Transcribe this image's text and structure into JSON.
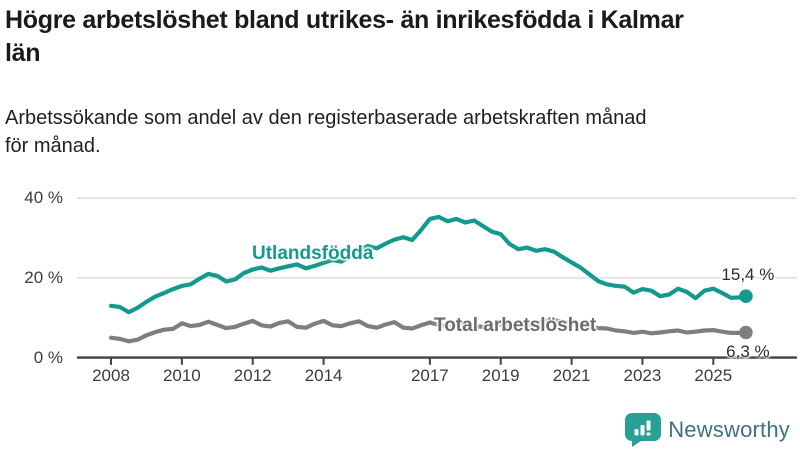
{
  "header": {
    "title": "Högre arbetslöshet bland utrikes- än inrikesfödda i Kalmar län",
    "subtitle": "Arbetssökande som andel av den registerbaserade arbetskraften månad för månad."
  },
  "chart_data": {
    "type": "line",
    "title": "Högre arbetslöshet bland utrikes- än inrikesfödda i Kalmar län",
    "subtitle": "Arbetssökande som andel av den registerbaserade arbetskraften månad för månad.",
    "unit": "%",
    "grid": "horizontal",
    "x_axis": {
      "min": 2008,
      "max": 2026,
      "tick_years": [
        2008,
        2010,
        2012,
        2014,
        2017,
        2019,
        2021,
        2023,
        2025
      ],
      "tick_labels": [
        "2008",
        "2010",
        "2012",
        "2014",
        "2017",
        "2019",
        "2021",
        "2023",
        "2025"
      ]
    },
    "y_axis": {
      "min": 0,
      "max": 42,
      "ticks": [
        0,
        20,
        40
      ],
      "tick_labels": [
        "0 %",
        "20 %",
        "40 %"
      ]
    },
    "x": [
      2008.0,
      2008.25,
      2008.5,
      2008.75,
      2009.0,
      2009.25,
      2009.5,
      2009.75,
      2010.0,
      2010.25,
      2010.5,
      2010.75,
      2011.0,
      2011.25,
      2011.5,
      2011.75,
      2012.0,
      2012.25,
      2012.5,
      2012.75,
      2013.0,
      2013.25,
      2013.5,
      2013.75,
      2014.0,
      2014.25,
      2014.5,
      2014.75,
      2015.0,
      2015.25,
      2015.5,
      2015.75,
      2016.0,
      2016.25,
      2016.5,
      2016.75,
      2017.0,
      2017.25,
      2017.5,
      2017.75,
      2018.0,
      2018.25,
      2018.5,
      2018.75,
      2019.0,
      2019.25,
      2019.5,
      2019.75,
      2020.0,
      2020.25,
      2020.5,
      2020.75,
      2021.0,
      2021.25,
      2021.5,
      2021.75,
      2022.0,
      2022.25,
      2022.5,
      2022.75,
      2023.0,
      2023.25,
      2023.5,
      2023.75,
      2024.0,
      2024.25,
      2024.5,
      2024.75,
      2025.0,
      2025.25,
      2025.5,
      2025.75,
      2025.92
    ],
    "series": [
      {
        "name": "Utlandsfödda",
        "color": "#149a8c",
        "end_label": "15,4 %",
        "end_value": 15.4,
        "values": [
          13.0,
          12.7,
          11.4,
          12.5,
          14.0,
          15.3,
          16.2,
          17.2,
          18.0,
          18.4,
          19.8,
          21.0,
          20.5,
          19.1,
          19.6,
          21.2,
          22.1,
          22.6,
          21.8,
          22.4,
          22.9,
          23.4,
          22.4,
          23.0,
          23.8,
          24.5,
          24.1,
          25.5,
          26.8,
          28.0,
          27.4,
          28.6,
          29.6,
          30.2,
          29.5,
          32.0,
          34.8,
          35.3,
          34.2,
          34.8,
          33.9,
          34.4,
          33.0,
          31.6,
          31.0,
          28.5,
          27.2,
          27.6,
          26.8,
          27.2,
          26.6,
          25.2,
          23.9,
          22.6,
          20.9,
          19.2,
          18.4,
          18.0,
          17.8,
          16.3,
          17.2,
          16.8,
          15.4,
          15.8,
          17.3,
          16.5,
          14.9,
          16.8,
          17.3,
          16.2,
          15.0,
          15.1,
          15.4
        ]
      },
      {
        "name": "Total arbetslöshet",
        "color": "#7e7e7e",
        "end_label": "6,3 %",
        "end_value": 6.3,
        "values": [
          5.0,
          4.7,
          4.1,
          4.5,
          5.6,
          6.4,
          7.0,
          7.2,
          8.6,
          7.9,
          8.2,
          9.0,
          8.2,
          7.4,
          7.7,
          8.5,
          9.2,
          8.1,
          7.8,
          8.7,
          9.1,
          7.7,
          7.5,
          8.5,
          9.2,
          8.1,
          7.9,
          8.6,
          9.1,
          7.9,
          7.5,
          8.3,
          8.9,
          7.5,
          7.3,
          8.1,
          8.8,
          8.2,
          8.0,
          8.4,
          8.6,
          7.9,
          7.7,
          8.1,
          8.3,
          7.8,
          7.9,
          8.2,
          8.5,
          9.2,
          9.4,
          8.9,
          8.7,
          8.2,
          7.7,
          7.4,
          7.3,
          6.8,
          6.6,
          6.2,
          6.5,
          6.1,
          6.3,
          6.6,
          6.8,
          6.3,
          6.5,
          6.8,
          6.9,
          6.5,
          6.2,
          6.2,
          6.3
        ]
      }
    ],
    "colors": {
      "grid": "#d8d8d8",
      "axis": "#414141",
      "teal": "#149a8c",
      "gray": "#7e7e7e"
    }
  },
  "branding": {
    "logo_text": "Newsworthy",
    "logo_icon": "bar-chart-speech-bubble",
    "icon_color": "#28a095",
    "text_color": "#3d737e"
  }
}
